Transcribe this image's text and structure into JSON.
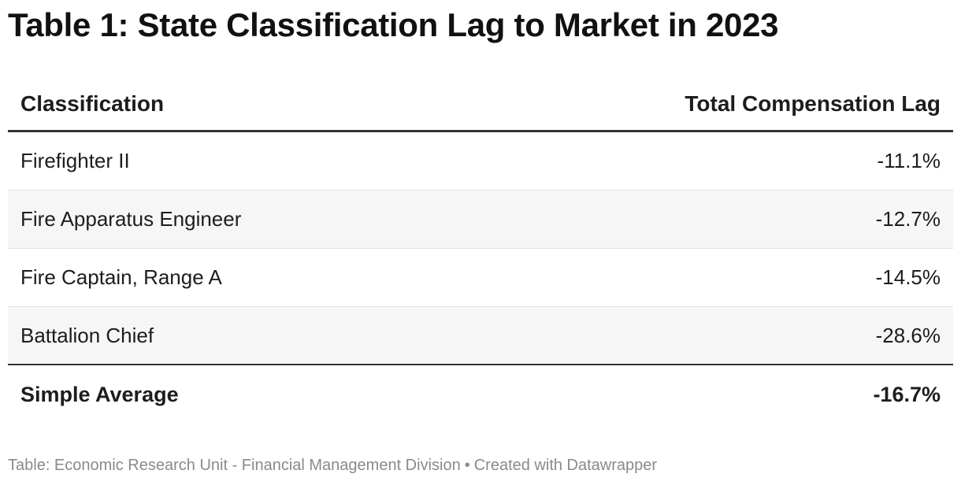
{
  "title": "Table 1: State Classification Lag to Market in 2023",
  "chart_data": {
    "type": "table",
    "columns": [
      "Classification",
      "Total Compensation Lag"
    ],
    "rows": [
      {
        "classification": "Firefighter II",
        "lag": "-11.1%"
      },
      {
        "classification": "Fire Apparatus Engineer",
        "lag": "-12.7%"
      },
      {
        "classification": "Fire Captain, Range A",
        "lag": "-14.5%"
      },
      {
        "classification": "Battalion Chief",
        "lag": "-28.6%"
      }
    ],
    "total": {
      "classification": "Simple Average",
      "lag": "-16.7%"
    }
  },
  "footer": {
    "source": "Table: Economic Research Unit - Financial Management Division",
    "separator": "•",
    "credit": "Created with Datawrapper"
  }
}
